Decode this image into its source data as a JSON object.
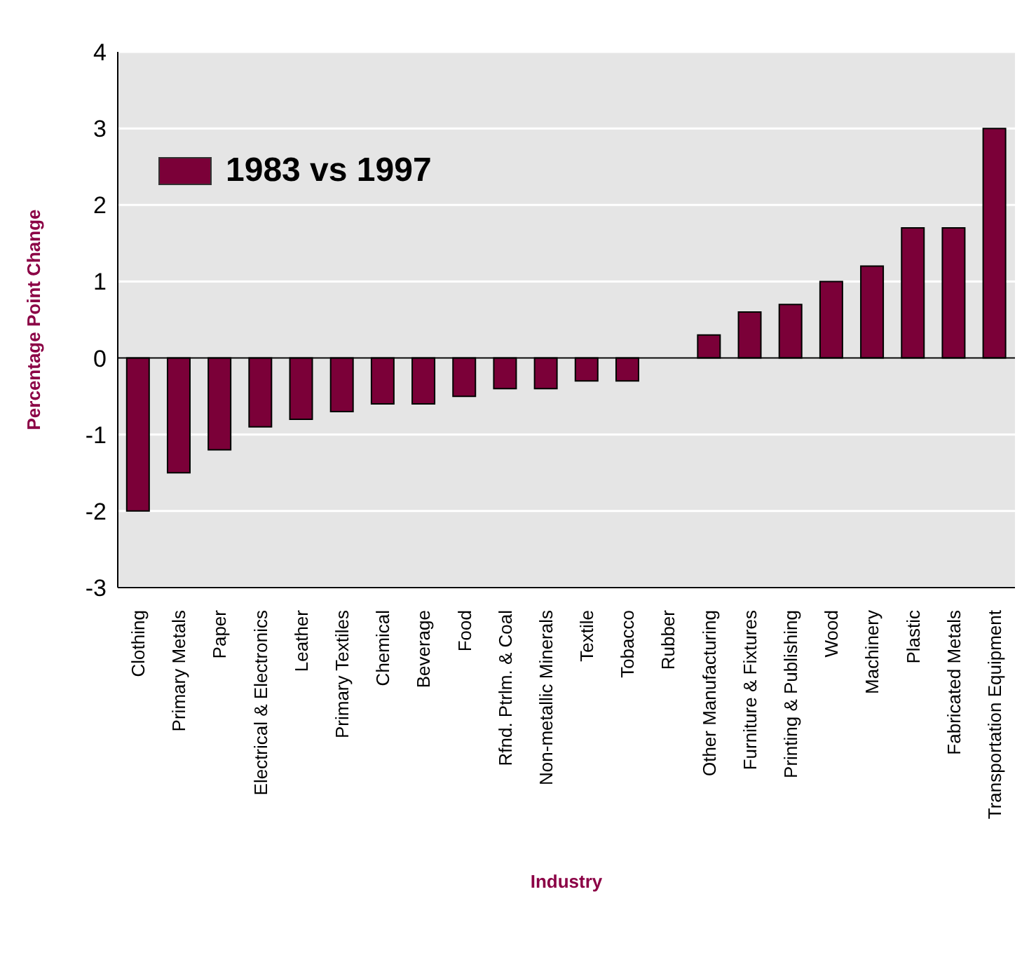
{
  "chart_data": {
    "type": "bar",
    "xlabel": "Industry",
    "ylabel": "Percentage Point Change",
    "categories": [
      "Clothing",
      "Primary Metals",
      "Paper",
      "Electrical & Electronics",
      "Leather",
      "Primary Textiles",
      "Chemical",
      "Beverage",
      "Food",
      "Rfnd. Ptrlm. & Coal",
      "Non-metallic Minerals",
      "Textile",
      "Tobacco",
      "Rubber",
      "Other Manufacturing",
      "Furniture & Fixtures",
      "Printing & Publishing",
      "Wood",
      "Machinery",
      "Plastic",
      "Fabricated Metals",
      "Transportation Equipment"
    ],
    "series": [
      {
        "name": "1983 vs 1997",
        "color": "#7b0038",
        "values": [
          -2.0,
          -1.5,
          -1.2,
          -0.9,
          -0.8,
          -0.7,
          -0.6,
          -0.6,
          -0.5,
          -0.4,
          -0.4,
          -0.3,
          -0.3,
          0,
          0.3,
          0.6,
          0.7,
          1.0,
          1.2,
          1.7,
          1.7,
          3.0
        ]
      }
    ],
    "ylim": [
      -3,
      4
    ],
    "yticks": [
      -3,
      -2,
      -1,
      0,
      1,
      2,
      3,
      4
    ],
    "grid": "y",
    "legend": "top left"
  }
}
